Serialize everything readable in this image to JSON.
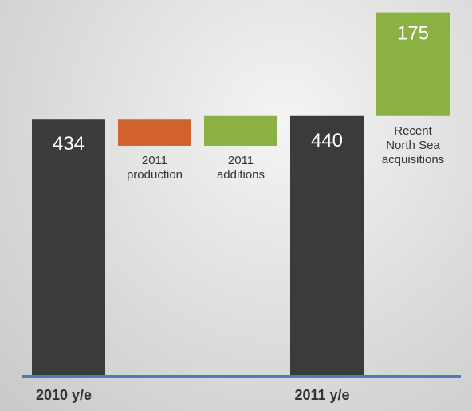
{
  "chart_data": {
    "type": "waterfall",
    "categories": [
      "2010 y/e",
      "2011 production",
      "2011 additions",
      "2011 y/e",
      "Recent North Sea acquisitions"
    ],
    "measure": [
      "absolute",
      "relative",
      "relative",
      "absolute",
      "relative"
    ],
    "values": [
      434,
      -44,
      50,
      440,
      175
    ],
    "show_values": [
      true,
      false,
      false,
      true,
      true
    ],
    "colors": [
      "#3b3b3b",
      "#d2622b",
      "#8cb143",
      "#3b3b3b",
      "#8cb143"
    ],
    "baseline_color": "#4a7cc0",
    "ylim": [
      0,
      636
    ]
  }
}
